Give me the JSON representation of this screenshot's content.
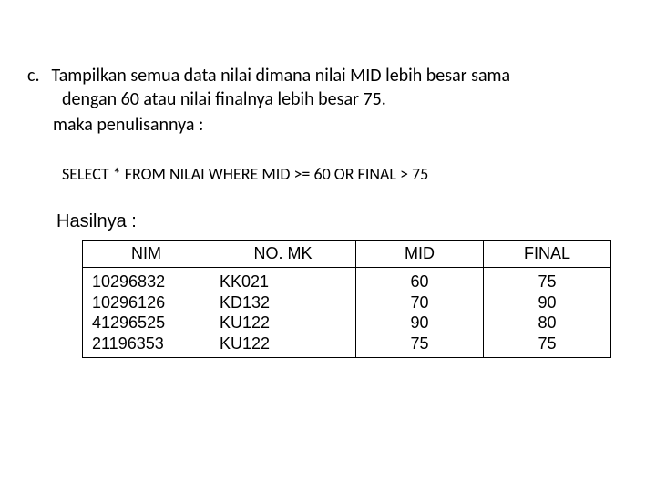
{
  "question": {
    "marker": "c.",
    "line1": "Tampilkan semua data nilai dimana nilai MID lebih besar sama",
    "line2": "dengan 60 atau nilai finalnya lebih besar 75.",
    "line3": "maka penulisannya :"
  },
  "sql_statement": "SELECT * FROM NILAI WHERE MID >= 60 OR FINAL > 75",
  "result_label": "Hasilnya :",
  "table": {
    "columns": [
      "NIM",
      "NO. MK",
      "MID",
      "FINAL"
    ],
    "rows": [
      [
        "10296832",
        "KK021",
        "60",
        "75"
      ],
      [
        "10296126",
        "KD132",
        "70",
        "90"
      ],
      [
        "41296525",
        "KU122",
        "90",
        "80"
      ],
      [
        "21196353",
        "KU122",
        "75",
        "75"
      ]
    ],
    "column_align": [
      "left",
      "left",
      "center",
      "center"
    ],
    "border_color": "#000000",
    "header_fontsize": 18,
    "cell_fontsize": 18,
    "background_color": "#ffffff"
  },
  "colors": {
    "text": "#000000",
    "background": "#ffffff"
  },
  "typography": {
    "body_font": "Calibri",
    "table_font": "Arial",
    "body_fontsize": 20,
    "sql_fontsize": 18
  }
}
